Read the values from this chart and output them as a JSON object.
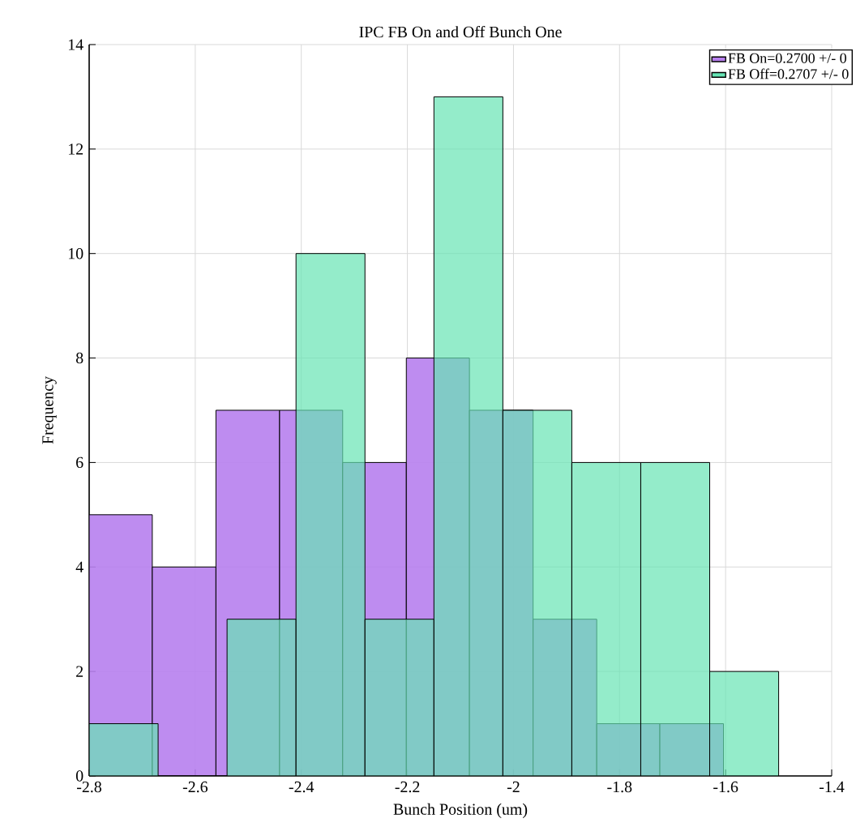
{
  "chart_data": {
    "type": "histogram",
    "title": "IPC FB On and Off Bunch One",
    "xlabel": "Bunch Position (um)",
    "ylabel": "Frequency",
    "bins": [
      -2.8,
      -2.681,
      -2.561,
      -2.441,
      -2.322,
      -2.202,
      -2.083,
      -1.963,
      -1.843,
      -1.724,
      -1.604
    ],
    "series": [
      {
        "name": "FB On=0.2700 +/- 0",
        "color": "#b77fee",
        "values": [
          5,
          4,
          7,
          7,
          6,
          8,
          7,
          3,
          1,
          1
        ]
      },
      {
        "name": "FB Off=0.2707 +/- 0",
        "color": "#66e4b4",
        "bins": [
          -2.8,
          -2.67,
          -2.54,
          -2.41,
          -2.28,
          -2.15,
          -2.02,
          -1.89,
          -1.76,
          -1.63,
          -1.5
        ],
        "values": [
          1,
          0,
          3,
          10,
          3,
          13,
          7,
          6,
          6,
          2
        ]
      }
    ],
    "xlim": [
      -2.8,
      -1.4
    ],
    "ylim": [
      0,
      14
    ],
    "xticks": [
      -2.8,
      -2.6,
      -2.4,
      -2.2,
      -2,
      -1.8,
      -1.6,
      -1.4
    ],
    "yticks": [
      0,
      2,
      4,
      6,
      8,
      10,
      12,
      14
    ],
    "grid": true,
    "legend": "top right"
  }
}
